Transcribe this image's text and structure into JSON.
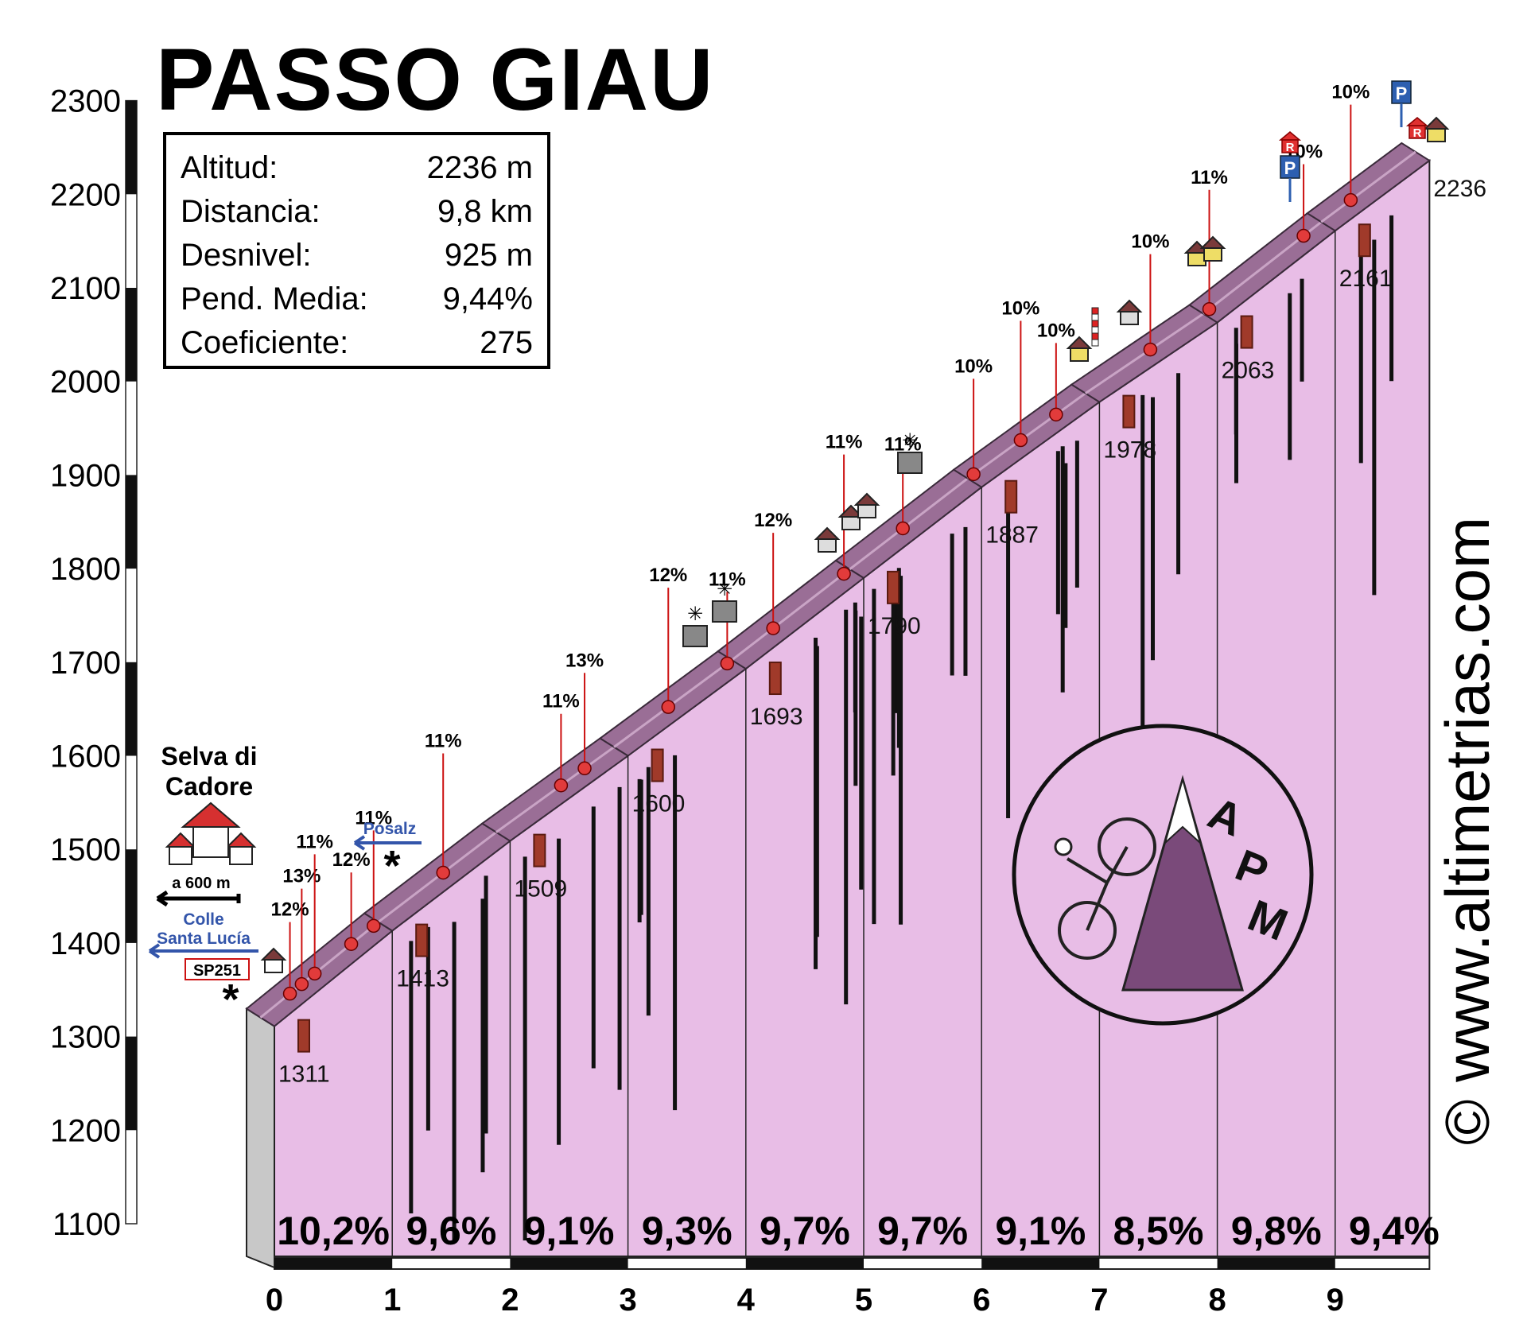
{
  "title": "PASSO GIAU",
  "info": [
    {
      "label": "Altitud:",
      "value": "2236 m"
    },
    {
      "label": "Distancia:",
      "value": "9,8 km"
    },
    {
      "label": "Desnivel:",
      "value": "925 m"
    },
    {
      "label": "Pend. Media:",
      "value": "9,44%"
    },
    {
      "label": "Coeficiente:",
      "value": "275"
    }
  ],
  "start_town": [
    "Selva di",
    "Cadore"
  ],
  "annotations": {
    "a600": "a 600 m",
    "colle": [
      "Colle",
      "Santa Lucía"
    ],
    "sp": "SP251",
    "posalz": "Posalz",
    "end_elev": "2236"
  },
  "watermark": "© www.altimetrias.com",
  "logo_letters": [
    "A",
    "P",
    "M"
  ],
  "colors": {
    "fill": "#e8bde6",
    "road": "#9a6e96",
    "road_light": "#c9a4c5",
    "marker": "#e23b3b",
    "label_line": "#cc1111",
    "arrow_blue": "#3355aa"
  },
  "chart_data": {
    "type": "area",
    "title": "PASSO GIAU",
    "xlabel": "",
    "ylabel": "",
    "x_range": [
      0,
      9.8
    ],
    "y_range": [
      1100,
      2300
    ],
    "x_ticks": [
      "0",
      "1",
      "2",
      "3",
      "4",
      "5",
      "6",
      "7",
      "8",
      "9"
    ],
    "y_ticks": [
      "1100",
      "1200",
      "1300",
      "1400",
      "1500",
      "1600",
      "1700",
      "1800",
      "1900",
      "2000",
      "2100",
      "2200",
      "2300"
    ],
    "profile": [
      {
        "km": 0,
        "alt": 1311
      },
      {
        "km": 1,
        "alt": 1413
      },
      {
        "km": 2,
        "alt": 1509
      },
      {
        "km": 3,
        "alt": 1600
      },
      {
        "km": 4,
        "alt": 1693
      },
      {
        "km": 5,
        "alt": 1790
      },
      {
        "km": 6,
        "alt": 1887
      },
      {
        "km": 7,
        "alt": 1978
      },
      {
        "km": 8,
        "alt": 2063
      },
      {
        "km": 9,
        "alt": 2161
      },
      {
        "km": 9.8,
        "alt": 2236
      }
    ],
    "km_elevation_labels": [
      "1311",
      "1413",
      "1509",
      "1600",
      "1693",
      "1790",
      "1887",
      "1978",
      "2063",
      "2161"
    ],
    "km_gradients": [
      "10,2%",
      "9,6%",
      "9,1%",
      "9,3%",
      "9,7%",
      "9,7%",
      "9,1%",
      "8,5%",
      "9,8%",
      "9,4%"
    ],
    "gradient_markers": [
      {
        "km": 0.25,
        "label": "12%"
      },
      {
        "km": 0.35,
        "label": "13%"
      },
      {
        "km": 0.46,
        "label": "11%"
      },
      {
        "km": 0.77,
        "label": "12%"
      },
      {
        "km": 0.96,
        "label": "11%"
      },
      {
        "km": 1.55,
        "label": "11%"
      },
      {
        "km": 2.55,
        "label": "11%"
      },
      {
        "km": 2.75,
        "label": "13%"
      },
      {
        "km": 3.46,
        "label": "12%"
      },
      {
        "km": 3.96,
        "label": "11%"
      },
      {
        "km": 4.35,
        "label": "12%"
      },
      {
        "km": 4.95,
        "label": "11%"
      },
      {
        "km": 5.45,
        "label": "11%"
      },
      {
        "km": 6.05,
        "label": "10%"
      },
      {
        "km": 6.45,
        "label": "10%"
      },
      {
        "km": 6.75,
        "label": "10%"
      },
      {
        "km": 7.55,
        "label": "10%"
      },
      {
        "km": 8.05,
        "label": "11%"
      },
      {
        "km": 8.85,
        "label": "10%"
      },
      {
        "km": 9.25,
        "label": "10%"
      }
    ]
  }
}
